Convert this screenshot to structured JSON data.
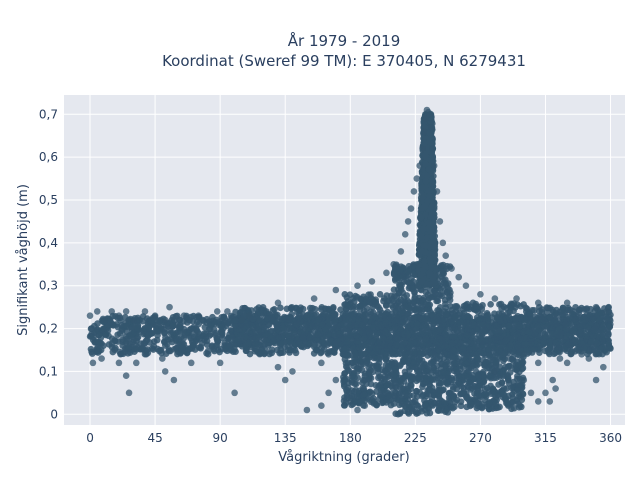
{
  "chart_data": {
    "type": "scatter",
    "title": "År 1979 - 2019",
    "subtitle": "Koordinat (Sweref 99 TM): E 370405, N 6279431",
    "xlabel": "Vågriktning (grader)",
    "ylabel": "Signifikant våghöjd (m)",
    "xlim": [
      -18,
      370
    ],
    "ylim": [
      -0.025,
      0.745
    ],
    "xticks": [
      0,
      45,
      90,
      135,
      180,
      225,
      270,
      315,
      360
    ],
    "xtick_labels": [
      "0",
      "45",
      "90",
      "135",
      "180",
      "225",
      "270",
      "315",
      "360"
    ],
    "yticks": [
      0,
      0.1,
      0.2,
      0.3,
      0.4,
      0.5,
      0.6,
      0.7
    ],
    "ytick_labels": [
      "0",
      "0,1",
      "0,2",
      "0,3",
      "0,4",
      "0,5",
      "0,6",
      "0,7"
    ],
    "grid": true,
    "legend": "none",
    "marker_color": "#34566e",
    "background_color": "#e5e8ef",
    "bands": [
      {
        "x": [
          0,
          360
        ],
        "y": [
          0.14,
          0.23
        ]
      },
      {
        "x": [
          100,
          175
        ],
        "y": [
          0.16,
          0.25
        ]
      },
      {
        "x": [
          175,
          210
        ],
        "y": [
          0.02,
          0.28
        ]
      },
      {
        "x": [
          210,
          250
        ],
        "y": [
          0.0,
          0.35
        ]
      },
      {
        "x": [
          250,
          300
        ],
        "y": [
          0.01,
          0.26
        ]
      },
      {
        "x": [
          300,
          360
        ],
        "y": [
          0.15,
          0.25
        ]
      }
    ],
    "points": [
      [
        0,
        0.23
      ],
      [
        5,
        0.24
      ],
      [
        10,
        0.22
      ],
      [
        15,
        0.24
      ],
      [
        20,
        0.23
      ],
      [
        25,
        0.24
      ],
      [
        30,
        0.22
      ],
      [
        38,
        0.24
      ],
      [
        45,
        0.23
      ],
      [
        52,
        0.22
      ],
      [
        55,
        0.25
      ],
      [
        65,
        0.23
      ],
      [
        75,
        0.23
      ],
      [
        88,
        0.24
      ],
      [
        95,
        0.24
      ],
      [
        105,
        0.22
      ],
      [
        110,
        0.23
      ],
      [
        2,
        0.12
      ],
      [
        8,
        0.13
      ],
      [
        20,
        0.12
      ],
      [
        25,
        0.09
      ],
      [
        32,
        0.12
      ],
      [
        50,
        0.13
      ],
      [
        52,
        0.1
      ],
      [
        58,
        0.08
      ],
      [
        70,
        0.12
      ],
      [
        90,
        0.12
      ],
      [
        100,
        0.05
      ],
      [
        130,
        0.11
      ],
      [
        27,
        0.05
      ],
      [
        130,
        0.26
      ],
      [
        155,
        0.27
      ],
      [
        170,
        0.29
      ],
      [
        185,
        0.3
      ],
      [
        195,
        0.31
      ],
      [
        205,
        0.33
      ],
      [
        210,
        0.35
      ],
      [
        215,
        0.38
      ],
      [
        218,
        0.42
      ],
      [
        220,
        0.45
      ],
      [
        222,
        0.48
      ],
      [
        224,
        0.52
      ],
      [
        226,
        0.55
      ],
      [
        228,
        0.58
      ],
      [
        230,
        0.62
      ],
      [
        231,
        0.66
      ],
      [
        232,
        0.69
      ],
      [
        233,
        0.71
      ],
      [
        234,
        0.705
      ],
      [
        235,
        0.7
      ],
      [
        236,
        0.67
      ],
      [
        237,
        0.62
      ],
      [
        238,
        0.58
      ],
      [
        240,
        0.52
      ],
      [
        242,
        0.45
      ],
      [
        244,
        0.4
      ],
      [
        246,
        0.37
      ],
      [
        250,
        0.34
      ],
      [
        255,
        0.32
      ],
      [
        260,
        0.3
      ],
      [
        270,
        0.28
      ],
      [
        280,
        0.27
      ],
      [
        295,
        0.27
      ],
      [
        310,
        0.26
      ],
      [
        330,
        0.26
      ],
      [
        350,
        0.25
      ],
      [
        357,
        0.24
      ],
      [
        150,
        0.01
      ],
      [
        160,
        0.02
      ],
      [
        165,
        0.05
      ],
      [
        170,
        0.08
      ],
      [
        178,
        0.11
      ],
      [
        180,
        0.03
      ],
      [
        185,
        0.01
      ],
      [
        190,
        0.02
      ],
      [
        135,
        0.08
      ],
      [
        140,
        0.1
      ],
      [
        160,
        0.12
      ],
      [
        165,
        0.14
      ],
      [
        280,
        0.1
      ],
      [
        290,
        0.13
      ],
      [
        300,
        0.08
      ],
      [
        305,
        0.05
      ],
      [
        310,
        0.03
      ],
      [
        315,
        0.05
      ],
      [
        320,
        0.08
      ],
      [
        325,
        0.13
      ],
      [
        330,
        0.12
      ],
      [
        345,
        0.13
      ],
      [
        350,
        0.08
      ],
      [
        355,
        0.11
      ],
      [
        300,
        0.14
      ],
      [
        310,
        0.12
      ],
      [
        298,
        0.04
      ],
      [
        318,
        0.03
      ],
      [
        322,
        0.06
      ],
      [
        340,
        0.14
      ]
    ],
    "peak_core": {
      "x": [
        229,
        237
      ],
      "y": [
        0.3,
        0.7
      ]
    }
  }
}
